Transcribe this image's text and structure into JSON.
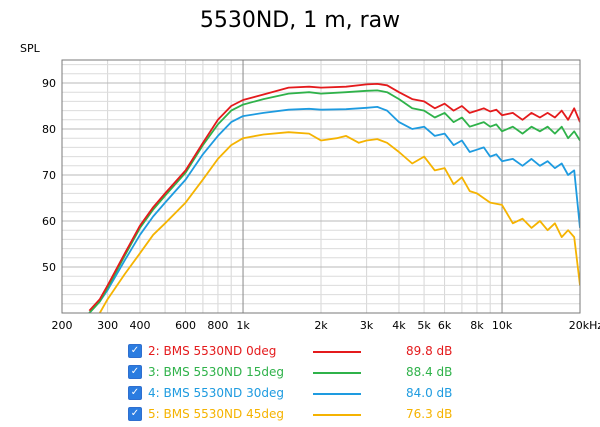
{
  "colors": {
    "red": "#e41a1c",
    "green": "#2fb24a",
    "blue": "#1e9be0",
    "orange": "#f5b301"
  },
  "chart_data": {
    "type": "line",
    "title": "5530ND, 1 m, raw",
    "ylabel": "SPL",
    "xlabel": "",
    "x_scale": "log",
    "xlim": [
      200,
      20000
    ],
    "ylim": [
      40,
      95
    ],
    "grid": true,
    "x_tick_labels": [
      {
        "value": 200,
        "label": "200"
      },
      {
        "value": 300,
        "label": "300"
      },
      {
        "value": 400,
        "label": "400"
      },
      {
        "value": 600,
        "label": "600"
      },
      {
        "value": 800,
        "label": "800"
      },
      {
        "value": 1000,
        "label": "1k"
      },
      {
        "value": 2000,
        "label": "2k"
      },
      {
        "value": 3000,
        "label": "3k"
      },
      {
        "value": 4000,
        "label": "4k"
      },
      {
        "value": 5000,
        "label": "5k"
      },
      {
        "value": 6000,
        "label": "6k"
      },
      {
        "value": 8000,
        "label": "8k"
      },
      {
        "value": 10000,
        "label": "10k"
      },
      {
        "value": 20000,
        "label": "20kHz"
      }
    ],
    "y_tick_labels": [
      50,
      60,
      70,
      80,
      90
    ],
    "legend_position": "bottom",
    "series": [
      {
        "name": "2: BMS 5530ND 0deg",
        "legend_value": "89.8 dB",
        "color": "#e41a1c",
        "x": [
          255,
          280,
          300,
          350,
          400,
          450,
          500,
          600,
          700,
          800,
          900,
          1000,
          1200,
          1500,
          1800,
          2000,
          2500,
          3000,
          3300,
          3600,
          4000,
          4500,
          5000,
          5500,
          6000,
          6500,
          7000,
          7500,
          8000,
          8500,
          9000,
          9500,
          10000,
          11000,
          12000,
          13000,
          14000,
          15000,
          16000,
          17000,
          18000,
          19000,
          20000
        ],
        "y": [
          40.5,
          43,
          46,
          53,
          59,
          63,
          66,
          71,
          77,
          82,
          85,
          86.3,
          87.5,
          89,
          89.2,
          89.0,
          89.2,
          89.7,
          89.8,
          89.5,
          88.0,
          86.5,
          86.0,
          84.5,
          85.5,
          84.0,
          85.0,
          83.5,
          84.0,
          84.5,
          83.8,
          84.2,
          83.0,
          83.5,
          82.0,
          83.5,
          82.5,
          83.5,
          82.5,
          84.0,
          82.0,
          84.5,
          81.5
        ]
      },
      {
        "name": "3: BMS 5530ND 15deg",
        "legend_value": "88.4 dB",
        "color": "#2fb24a",
        "x": [
          255,
          280,
          300,
          350,
          400,
          450,
          500,
          600,
          700,
          800,
          900,
          1000,
          1200,
          1500,
          1800,
          2000,
          2500,
          3000,
          3300,
          3600,
          4000,
          4500,
          5000,
          5500,
          6000,
          6500,
          7000,
          7500,
          8000,
          8500,
          9000,
          9500,
          10000,
          11000,
          12000,
          13000,
          14000,
          15000,
          16000,
          17000,
          18000,
          19000,
          20000
        ],
        "y": [
          40,
          42.5,
          45.5,
          52.5,
          58.5,
          62.5,
          65.5,
          70.5,
          76.5,
          81,
          84,
          85.3,
          86.5,
          87.7,
          88.0,
          87.7,
          88.0,
          88.3,
          88.4,
          88.0,
          86.5,
          84.5,
          84.0,
          82.5,
          83.5,
          81.5,
          82.5,
          80.5,
          81.0,
          81.5,
          80.5,
          81.0,
          79.5,
          80.5,
          79.0,
          80.5,
          79.5,
          80.5,
          79.0,
          80.5,
          78.0,
          79.5,
          77.5
        ]
      },
      {
        "name": "4: BMS 5530ND 30deg",
        "legend_value": "84.0 dB",
        "color": "#1e9be0",
        "x": [
          255,
          280,
          300,
          350,
          400,
          450,
          500,
          600,
          700,
          800,
          900,
          1000,
          1200,
          1500,
          1800,
          2000,
          2500,
          3000,
          3300,
          3600,
          4000,
          4500,
          5000,
          5500,
          6000,
          6500,
          7000,
          7500,
          8000,
          8500,
          9000,
          9500,
          10000,
          11000,
          12000,
          13000,
          14000,
          15000,
          16000,
          17000,
          18000,
          19000,
          20000
        ],
        "y": [
          40,
          42.5,
          45,
          51.5,
          57,
          61,
          64,
          69,
          74.5,
          78.5,
          81.5,
          82.8,
          83.5,
          84.2,
          84.4,
          84.2,
          84.3,
          84.6,
          84.8,
          84.0,
          81.5,
          80.0,
          80.5,
          78.5,
          79.0,
          76.5,
          77.5,
          75.0,
          75.5,
          76.0,
          74.0,
          74.5,
          73.0,
          73.5,
          72.0,
          73.5,
          72.0,
          73.0,
          71.5,
          72.5,
          70.0,
          71.0,
          58.5
        ]
      },
      {
        "name": "5: BMS 5530ND 45deg",
        "legend_value": "76.3 dB",
        "color": "#f5b301",
        "x": [
          255,
          280,
          300,
          350,
          400,
          450,
          500,
          600,
          700,
          800,
          900,
          1000,
          1200,
          1500,
          1800,
          2000,
          2300,
          2500,
          2800,
          3000,
          3300,
          3600,
          4000,
          4500,
          5000,
          5500,
          6000,
          6500,
          7000,
          7500,
          8000,
          9000,
          10000,
          11000,
          12000,
          13000,
          14000,
          15000,
          16000,
          17000,
          18000,
          19000,
          20000
        ],
        "y": [
          38,
          40,
          43,
          48.5,
          53,
          57,
          59.5,
          64,
          69,
          73.5,
          76.5,
          78,
          78.8,
          79.3,
          79.0,
          77.5,
          78.0,
          78.5,
          77.0,
          77.5,
          77.8,
          77.0,
          75.0,
          72.5,
          74.0,
          71.0,
          71.5,
          68.0,
          69.5,
          66.5,
          66.0,
          64.0,
          63.5,
          59.5,
          60.5,
          58.5,
          60.0,
          58.0,
          59.5,
          56.5,
          58.0,
          56.5,
          46.0
        ]
      }
    ]
  }
}
